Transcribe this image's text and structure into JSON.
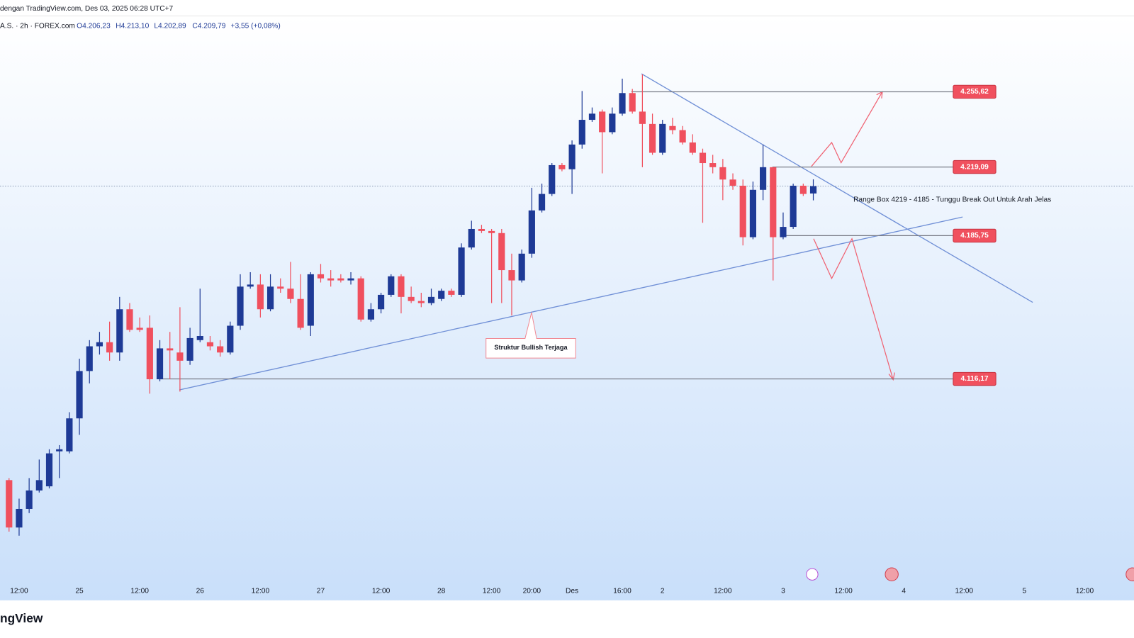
{
  "header": {
    "title": "dengan TradingView.com, Des 03, 2025 06:28 UTC+7",
    "symbol": "A.S. · 2h · FOREX.com",
    "open": "O4.206,23",
    "high": "H4.213,10",
    "low": "L4.202,89",
    "close": "C4.209,79",
    "change": "+3,55 (+0,08%)",
    "logo": "ngView"
  },
  "chart_data": {
    "type": "candlestick",
    "up_color": "#1e3a96",
    "down_color": "#f0505e",
    "xlim": [
      -0.9,
      111.9
    ],
    "ylim": [
      4008.6,
      4300.2
    ],
    "xticks": [
      {
        "value": 1,
        "label": "12:00"
      },
      {
        "value": 7,
        "label": "25"
      },
      {
        "value": 13,
        "label": "12:00"
      },
      {
        "value": 19,
        "label": "26"
      },
      {
        "value": 25,
        "label": "12:00"
      },
      {
        "value": 31,
        "label": "27"
      },
      {
        "value": 37,
        "label": "12:00"
      },
      {
        "value": 43,
        "label": "28"
      },
      {
        "value": 48,
        "label": "12:00"
      },
      {
        "value": 52,
        "label": "20:00"
      },
      {
        "value": 56,
        "label": "Des"
      },
      {
        "value": 61,
        "label": "16:00"
      },
      {
        "value": 65,
        "label": "2"
      },
      {
        "value": 71,
        "label": "12:00"
      },
      {
        "value": 77,
        "label": "3"
      },
      {
        "value": 83,
        "label": "12:00"
      },
      {
        "value": 89,
        "label": "4"
      },
      {
        "value": 95,
        "label": "12:00"
      },
      {
        "value": 101,
        "label": "5"
      },
      {
        "value": 107,
        "label": "12:00"
      }
    ],
    "open": [
      4067,
      4044,
      4053,
      4062,
      4064,
      4081,
      4081,
      4097,
      4120,
      4132,
      4134,
      4129,
      4150,
      4141,
      4141,
      4116,
      4131,
      4129,
      4125,
      4135,
      4134,
      4132,
      4129,
      4142,
      4161,
      4162,
      4150,
      4161,
      4160,
      4155,
      4142,
      4167,
      4165,
      4165,
      4164,
      4165,
      4145,
      4150,
      4157,
      4166,
      4156,
      4154,
      4153,
      4155,
      4159,
      4157,
      4180,
      4189,
      4188,
      4187,
      4169,
      4164,
      4177,
      4198,
      4206,
      4220,
      4218,
      4230,
      4242,
      4246,
      4236,
      4245,
      4255,
      4246,
      4240,
      4226,
      4239,
      4237,
      4231,
      4226,
      4221,
      4219,
      4213,
      4210,
      4185,
      4208,
      4219,
      4185,
      4190,
      4210,
      4206.23
    ],
    "high": [
      4068,
      4058,
      4068,
      4077,
      4082,
      4084,
      4100,
      4126,
      4135,
      4139,
      4144,
      4156,
      4153,
      4146,
      4147,
      4135,
      4139,
      4151,
      4141,
      4160,
      4137,
      4135,
      4144,
      4167,
      4168,
      4167,
      4167,
      4165,
      4173,
      4167,
      4168,
      4172,
      4169,
      4167,
      4168,
      4166,
      4153,
      4158,
      4167,
      4167,
      4161,
      4158,
      4160,
      4160,
      4160,
      4182,
      4193,
      4191,
      4189,
      4189,
      4177,
      4179,
      4209,
      4211,
      4221,
      4221,
      4232,
      4256,
      4248,
      4247,
      4248,
      4262,
      4257,
      4264,
      4245,
      4242,
      4243,
      4239,
      4235,
      4228,
      4225,
      4223,
      4216,
      4213,
      4212,
      4230,
      4219,
      4197,
      4211,
      4211,
      4213.1
    ],
    "low": [
      4042,
      4040,
      4051,
      4061,
      4063,
      4068,
      4080,
      4089,
      4114,
      4128,
      4125,
      4125,
      4139,
      4139,
      4109,
      4115,
      4116,
      4110,
      4123,
      4134,
      4130,
      4127,
      4128,
      4140,
      4160,
      4146,
      4149,
      4158,
      4153,
      4140,
      4137,
      4163,
      4161,
      4163,
      4162,
      4144,
      4144,
      4148,
      4156,
      4148,
      4153,
      4151,
      4152,
      4154,
      4156,
      4156,
      4179,
      4187,
      4153,
      4153,
      4147,
      4163,
      4175,
      4197,
      4205,
      4217,
      4206,
      4228,
      4241,
      4216,
      4235,
      4244,
      4245,
      4219,
      4225,
      4225,
      4235,
      4230,
      4225,
      4192,
      4216,
      4203,
      4208,
      4181,
      4184,
      4203,
      4164,
      4184,
      4189,
      4205,
      4202.89
    ],
    "close": [
      4044,
      4053,
      4062,
      4067,
      4080,
      4082,
      4097,
      4120,
      4132,
      4134,
      4129,
      4150,
      4140,
      4140,
      4116,
      4131,
      4130,
      4125,
      4136,
      4137,
      4132,
      4129,
      4142,
      4161,
      4162,
      4150,
      4161,
      4160,
      4155,
      4141,
      4167,
      4165,
      4164,
      4164,
      4165,
      4145,
      4150,
      4157,
      4166,
      4156,
      4154,
      4153,
      4156,
      4159,
      4157,
      4180,
      4189,
      4188,
      4187,
      4169,
      4164,
      4177,
      4198,
      4206,
      4220,
      4218,
      4230,
      4242,
      4245,
      4236,
      4245,
      4255,
      4246,
      4240,
      4226,
      4240,
      4237,
      4231,
      4226,
      4221,
      4219,
      4213,
      4210,
      4185,
      4208,
      4219,
      4185,
      4190,
      4210,
      4206,
      4209.79
    ],
    "levels": [
      {
        "value": 4255.62,
        "label": "4.255,62"
      },
      {
        "value": 4219.09,
        "label": "4.219,09"
      },
      {
        "value": 4185.75,
        "label": "4.185,75"
      },
      {
        "value": 4116.17,
        "label": "4.116,17"
      }
    ],
    "annotations": [
      "Struktur Bullish Terjaga",
      "Range Box 4219 - 4185 - Tunggu Break Out Untuk Arah Jelas"
    ]
  }
}
